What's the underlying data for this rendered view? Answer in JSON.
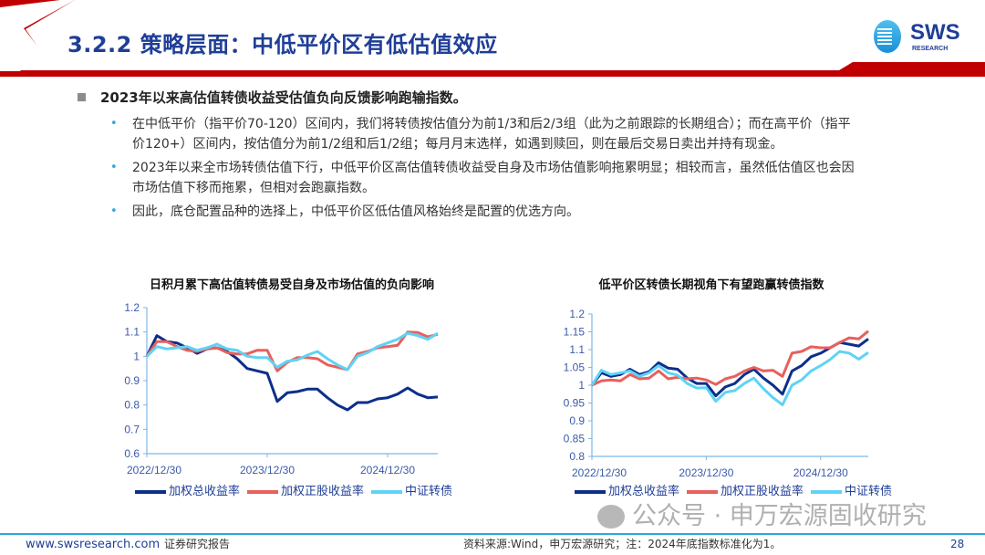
{
  "header": {
    "title": "3.2.2 策略层面：中低平价区有低估值效应",
    "logo_text": "SWS",
    "logo_subtext": "RESEARCH",
    "accent_red": "#c00000",
    "title_color": "#1f3e97"
  },
  "content": {
    "main_point": "2023年以来高估值转债收益受估值负向反馈影响跑输指数。",
    "sub_points": [
      "在中低平价（指平价70-120）区间内，我们将转债按估值分为前1/3和后2/3组（此为之前跟踪的长期组合）；而在高平价（指平价120+）区间内，按估值分为前1/2组和后1/2组；每月月末选样，如遇到赎回，则在最后交易日卖出并持有现金。",
      "2023年以来全市场转债估值下行，中低平价区高估值转债收益受自身及市场估值影响拖累明显；相较而言，虽然低估值区也会因市场估值下移而拖累，但相对会跑赢指数。",
      "因此，底仓配置品种的选择上，中低平价区低估值风格始终是配置的优选方向。"
    ]
  },
  "chart_data": [
    {
      "type": "line",
      "title": "日积月累下高估值转债易受自身及市场估值的负向影响",
      "ylim": [
        0.6,
        1.2
      ],
      "yticks": [
        "0.6",
        "0.7",
        "0.8",
        "0.9",
        "1",
        "1.1",
        "1.2"
      ],
      "xtick_labels": [
        "2022/12/30",
        "2023/12/30",
        "2024/12/30"
      ],
      "x": [
        "2022-12",
        "2023-01",
        "2023-02",
        "2023-03",
        "2023-04",
        "2023-05",
        "2023-06",
        "2023-07",
        "2023-08",
        "2023-09",
        "2023-10",
        "2023-11",
        "2023-12",
        "2024-01",
        "2024-02",
        "2024-03",
        "2024-04",
        "2024-05",
        "2024-06",
        "2024-07",
        "2024-08",
        "2024-09",
        "2024-10",
        "2024-11",
        "2024-12",
        "2025-01",
        "2025-02",
        "2025-03",
        "2025-04",
        "2025-05"
      ],
      "grid": false,
      "legend": "bottom",
      "series": [
        {
          "name": "加权总收益率",
          "color": "#0d2f8a",
          "values": [
            1.0,
            1.085,
            1.06,
            1.055,
            1.035,
            1.012,
            1.03,
            1.035,
            1.02,
            0.99,
            0.95,
            0.94,
            0.93,
            0.815,
            0.85,
            0.855,
            0.865,
            0.865,
            0.83,
            0.8,
            0.78,
            0.81,
            0.81,
            0.825,
            0.83,
            0.845,
            0.87,
            0.845,
            0.83,
            0.833
          ]
        },
        {
          "name": "加权正股收益率",
          "color": "#e8605c",
          "values": [
            1.0,
            1.06,
            1.06,
            1.04,
            1.025,
            1.02,
            1.03,
            1.035,
            1.015,
            1.01,
            1.01,
            1.025,
            1.025,
            0.94,
            0.975,
            0.995,
            0.995,
            0.99,
            0.965,
            0.955,
            0.945,
            1.01,
            1.02,
            1.035,
            1.04,
            1.045,
            1.1,
            1.098,
            1.08,
            1.09
          ]
        },
        {
          "name": "中证转债",
          "color": "#5fd3f5",
          "values": [
            1.0,
            1.04,
            1.03,
            1.035,
            1.04,
            1.025,
            1.035,
            1.05,
            1.03,
            1.025,
            1.0,
            0.995,
            0.995,
            0.955,
            0.98,
            0.985,
            1.005,
            1.02,
            0.99,
            0.965,
            0.945,
            1.0,
            1.015,
            1.04,
            1.055,
            1.07,
            1.095,
            1.085,
            1.07,
            1.095
          ]
        }
      ]
    },
    {
      "type": "line",
      "title": "低平价区转债长期视角下有望跑赢转债指数",
      "ylim": [
        0.8,
        1.2
      ],
      "yticks": [
        "0.8",
        "0.85",
        "0.9",
        "0.95",
        "1",
        "1.05",
        "1.1",
        "1.15",
        "1.2"
      ],
      "xtick_labels": [
        "2022/12/30",
        "2023/12/30",
        "2024/12/30"
      ],
      "x": [
        "2022-12",
        "2023-01",
        "2023-02",
        "2023-03",
        "2023-04",
        "2023-05",
        "2023-06",
        "2023-07",
        "2023-08",
        "2023-09",
        "2023-10",
        "2023-11",
        "2023-12",
        "2024-01",
        "2024-02",
        "2024-03",
        "2024-04",
        "2024-05",
        "2024-06",
        "2024-07",
        "2024-08",
        "2024-09",
        "2024-10",
        "2024-11",
        "2024-12",
        "2025-01",
        "2025-02",
        "2025-03",
        "2025-04",
        "2025-05"
      ],
      "grid": false,
      "legend": "bottom",
      "series": [
        {
          "name": "加权总收益率",
          "color": "#0d2f8a",
          "values": [
            1.0,
            1.035,
            1.025,
            1.03,
            1.045,
            1.03,
            1.038,
            1.063,
            1.048,
            1.045,
            1.02,
            1.005,
            1.005,
            0.97,
            0.995,
            1.005,
            1.03,
            1.045,
            1.02,
            1.0,
            0.975,
            1.04,
            1.055,
            1.08,
            1.09,
            1.105,
            1.12,
            1.115,
            1.11,
            1.13
          ]
        },
        {
          "name": "加权正股收益率",
          "color": "#e8605c",
          "values": [
            1.0,
            1.012,
            1.015,
            1.012,
            1.03,
            1.018,
            1.02,
            1.04,
            1.018,
            1.022,
            1.018,
            1.02,
            1.015,
            1.002,
            1.018,
            1.025,
            1.04,
            1.05,
            1.04,
            1.042,
            1.025,
            1.09,
            1.095,
            1.108,
            1.105,
            1.105,
            1.12,
            1.133,
            1.13,
            1.152
          ]
        },
        {
          "name": "中证转债",
          "color": "#5fd3f5",
          "values": [
            1.0,
            1.042,
            1.03,
            1.035,
            1.04,
            1.025,
            1.035,
            1.055,
            1.035,
            1.028,
            1.005,
            0.992,
            0.993,
            0.955,
            0.98,
            0.985,
            1.005,
            1.02,
            0.99,
            0.965,
            0.945,
            1.0,
            1.015,
            1.04,
            1.055,
            1.072,
            1.095,
            1.09,
            1.073,
            1.092
          ]
        }
      ]
    }
  ],
  "watermark": "公众号 · 申万宏源固收研究",
  "footer": {
    "website": "www.swsresearch.com",
    "report_type": "证券研究报告",
    "source_note": "资料来源:Wind，申万宏源研究；注：2024年底指数标准化为1。",
    "page_number": "28"
  }
}
